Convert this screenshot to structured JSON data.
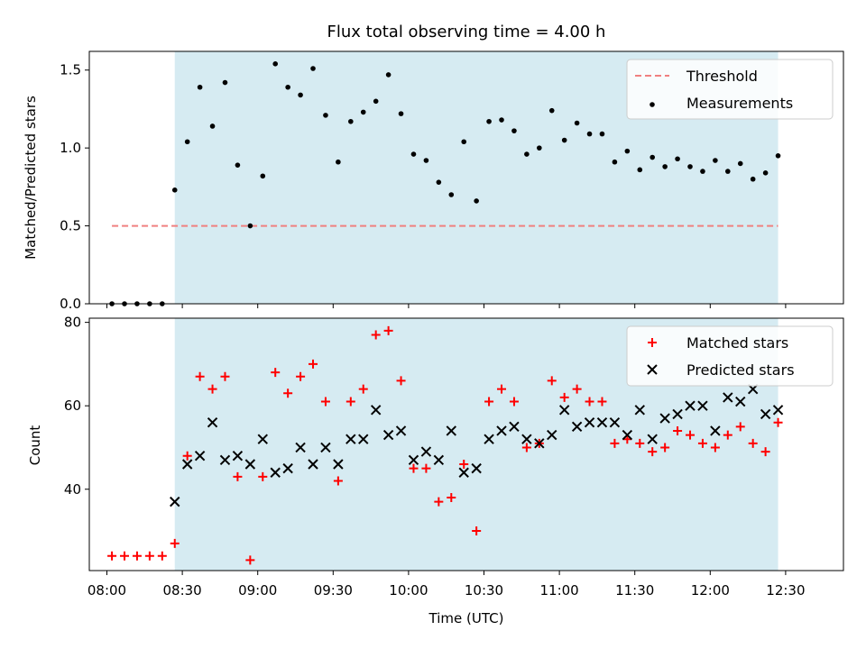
{
  "chart_data": [
    {
      "type": "scatter",
      "title": "Flux total observing time = 4.00 h",
      "xlabel": "",
      "ylabel": "Matched/Predicted stars",
      "ylim": [
        0,
        1.62
      ],
      "yticks": [
        "0.0",
        "0.5",
        "1.0",
        "1.5"
      ],
      "ytick_values": [
        0,
        0.5,
        1.0,
        1.5
      ],
      "shaded_region": {
        "from": "08:27",
        "to": "12:27",
        "color": "#add8e6"
      },
      "legend_position": "top-right",
      "series": [
        {
          "name": "Threshold",
          "style": "dashed-line",
          "color": "#f08080",
          "x": [
            "08:02",
            "12:27"
          ],
          "y": [
            0.5,
            0.5
          ]
        },
        {
          "name": "Measurements",
          "style": "dot",
          "color": "#000000",
          "x": [
            "08:02",
            "08:07",
            "08:12",
            "08:17",
            "08:22",
            "08:27",
            "08:32",
            "08:37",
            "08:42",
            "08:47",
            "08:52",
            "08:57",
            "09:02",
            "09:07",
            "09:12",
            "09:17",
            "09:22",
            "09:27",
            "09:32",
            "09:37",
            "09:42",
            "09:47",
            "09:52",
            "09:57",
            "10:02",
            "10:07",
            "10:12",
            "10:17",
            "10:22",
            "10:27",
            "10:32",
            "10:37",
            "10:42",
            "10:47",
            "10:52",
            "10:57",
            "11:02",
            "11:07",
            "11:12",
            "11:17",
            "11:22",
            "11:27",
            "11:32",
            "11:37",
            "11:42",
            "11:47",
            "11:52",
            "11:57",
            "12:02",
            "12:07",
            "12:12",
            "12:17",
            "12:22",
            "12:27"
          ],
          "y": [
            0,
            0,
            0,
            0,
            0,
            0.73,
            1.04,
            1.39,
            1.14,
            1.42,
            0.89,
            0.5,
            0.82,
            1.54,
            1.39,
            1.34,
            1.51,
            1.21,
            0.91,
            1.17,
            1.23,
            1.3,
            1.47,
            1.22,
            0.96,
            0.92,
            0.78,
            0.7,
            1.04,
            0.66,
            1.17,
            1.18,
            1.11,
            0.96,
            1.0,
            1.24,
            1.05,
            1.16,
            1.09,
            1.09,
            0.91,
            0.98,
            0.86,
            0.94,
            0.88,
            0.93,
            0.88,
            0.85,
            0.92,
            0.85,
            0.9,
            0.8,
            0.84,
            0.95
          ]
        }
      ]
    },
    {
      "type": "scatter",
      "title": "",
      "xlabel": "Time (UTC)",
      "ylabel": "Count",
      "ylim": [
        20.5,
        81
      ],
      "yticks": [
        "40",
        "60",
        "80"
      ],
      "ytick_values": [
        40,
        60,
        80
      ],
      "xticks": [
        "08:00",
        "08:30",
        "09:00",
        "09:30",
        "10:00",
        "10:30",
        "11:00",
        "11:30",
        "12:00",
        "12:30"
      ],
      "x_range": [
        "07:53",
        "12:53"
      ],
      "shaded_region": {
        "from": "08:27",
        "to": "12:27",
        "color": "#add8e6"
      },
      "legend_position": "top-right",
      "series": [
        {
          "name": "Matched stars",
          "style": "plus",
          "color": "#ff0000",
          "x": [
            "08:02",
            "08:07",
            "08:12",
            "08:17",
            "08:22",
            "08:27",
            "08:32",
            "08:37",
            "08:42",
            "08:47",
            "08:52",
            "08:57",
            "09:02",
            "09:07",
            "09:12",
            "09:17",
            "09:22",
            "09:27",
            "09:32",
            "09:37",
            "09:42",
            "09:47",
            "09:52",
            "09:57",
            "10:02",
            "10:07",
            "10:12",
            "10:17",
            "10:22",
            "10:27",
            "10:32",
            "10:37",
            "10:42",
            "10:47",
            "10:52",
            "10:57",
            "11:02",
            "11:07",
            "11:12",
            "11:17",
            "11:22",
            "11:27",
            "11:32",
            "11:37",
            "11:42",
            "11:47",
            "11:52",
            "11:57",
            "12:02",
            "12:07",
            "12:12",
            "12:17",
            "12:22",
            "12:27"
          ],
          "y": [
            24,
            24,
            24,
            24,
            24,
            27,
            48,
            67,
            64,
            67,
            43,
            23,
            43,
            68,
            63,
            67,
            70,
            61,
            42,
            61,
            64,
            77,
            78,
            66,
            45,
            45,
            37,
            38,
            46,
            30,
            61,
            64,
            61,
            50,
            51,
            66,
            62,
            64,
            61,
            61,
            51,
            52,
            51,
            49,
            50,
            54,
            53,
            51,
            50,
            53,
            55,
            51,
            49,
            56
          ]
        },
        {
          "name": "Predicted stars",
          "style": "cross",
          "color": "#000000",
          "x": [
            "08:27",
            "08:32",
            "08:37",
            "08:42",
            "08:47",
            "08:52",
            "08:57",
            "09:02",
            "09:07",
            "09:12",
            "09:17",
            "09:22",
            "09:27",
            "09:32",
            "09:37",
            "09:42",
            "09:47",
            "09:52",
            "09:57",
            "10:02",
            "10:07",
            "10:12",
            "10:17",
            "10:22",
            "10:27",
            "10:32",
            "10:37",
            "10:42",
            "10:47",
            "10:52",
            "10:57",
            "11:02",
            "11:07",
            "11:12",
            "11:17",
            "11:22",
            "11:27",
            "11:32",
            "11:37",
            "11:42",
            "11:47",
            "11:52",
            "11:57",
            "12:02",
            "12:07",
            "12:12",
            "12:17",
            "12:22",
            "12:27"
          ],
          "y": [
            37,
            46,
            48,
            56,
            47,
            48,
            46,
            52,
            44,
            45,
            50,
            46,
            50,
            46,
            52,
            52,
            59,
            53,
            54,
            47,
            49,
            47,
            54,
            44,
            45,
            52,
            54,
            55,
            52,
            51,
            53,
            59,
            55,
            56,
            56,
            56,
            53,
            59,
            52,
            57,
            58,
            60,
            60,
            54,
            62,
            61,
            64,
            58,
            59
          ]
        }
      ]
    }
  ]
}
